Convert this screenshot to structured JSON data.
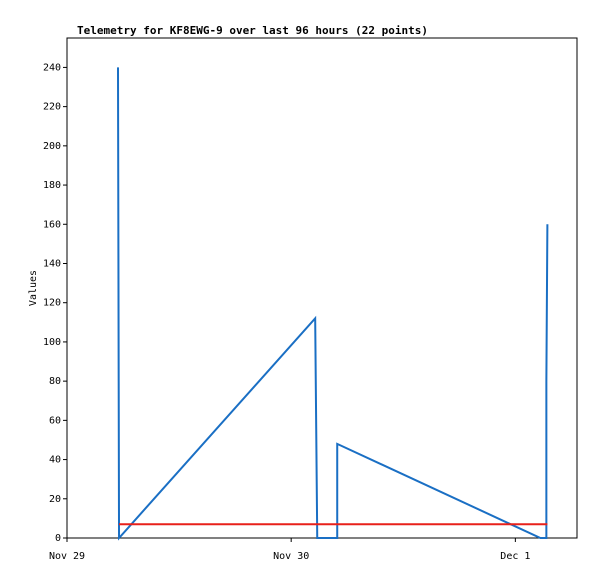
{
  "chart_data": {
    "type": "line",
    "title": "Telemetry for KF8EWG-9 over last 96 hours (22 points)",
    "y_label": "Values",
    "xlim": [
      0,
      54.6
    ],
    "xticks": [
      {
        "value": 0,
        "label": "Nov 29"
      },
      {
        "value": 24,
        "label": "Nov 30"
      },
      {
        "value": 48,
        "label": "Dec 1"
      }
    ],
    "ylim": [
      0,
      255
    ],
    "yticks": [
      0,
      20,
      40,
      60,
      80,
      100,
      120,
      140,
      160,
      180,
      200,
      220,
      240
    ],
    "series": [
      {
        "color": "#1a6fc4",
        "x": [
          5.46,
          5.57,
          26.57,
          26.68,
          26.79,
          28.93,
          28.93,
          50.68,
          51.32,
          51.32,
          51.43
        ],
        "values": [
          240,
          0,
          112,
          56,
          0,
          0,
          48,
          0,
          0,
          80,
          160
        ]
      },
      {
        "color": "#e8201a",
        "x": [
          5.57,
          51.43
        ],
        "values": [
          7,
          7
        ]
      }
    ]
  }
}
